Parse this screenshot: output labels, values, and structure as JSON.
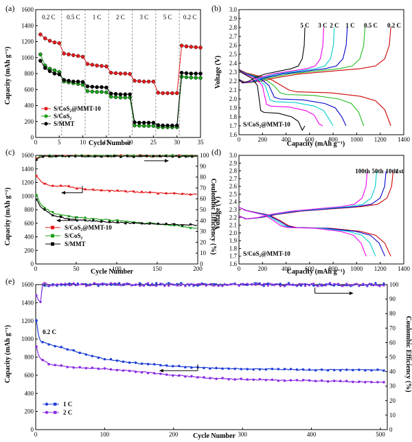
{
  "figure": {
    "panels": {
      "a": {
        "letter": "(a)",
        "xlabel": "Cycle Number",
        "ylabel": "Capacity (mAh g⁻¹)",
        "rates": [
          "0.2 C",
          "0.5 C",
          "1 C",
          "2 C",
          "3 C",
          "5 C",
          "0.2 C"
        ]
      },
      "b": {
        "letter": "(b)",
        "xlabel": "Capacity (mAh g⁻¹)",
        "ylabel": "Voltage (V)",
        "rate_labels": [
          "5 C",
          "3 C",
          "2 C",
          "1 C",
          "0.5 C",
          "0.2 C"
        ],
        "sample": "S/CoS₂@MMT-10"
      },
      "c": {
        "letter": "(c)",
        "xlabel": "Cycle Number",
        "ylabel": "Capacity (mAh g⁻¹)",
        "ylabel2": "Coulombic Efficiency (%)"
      },
      "d": {
        "letter": "(d)",
        "xlabel": "Capacity (mAh g⁻¹)",
        "ylabel": "Voltage (V)",
        "cycle_labels": [
          "100th",
          "50th",
          "10th",
          "1st"
        ],
        "sample": "S/CoS₂@MMT-10"
      },
      "e": {
        "letter": "(e)",
        "xlabel": "Cycle Number",
        "ylabel": "Capacity (mAh g⁻¹)",
        "ylabel2": "Coulombic Efficiency (%)",
        "annotation": "0.2 C"
      }
    }
  },
  "chart_data": [
    {
      "panel": "a",
      "type": "scatter",
      "xlim": [
        0,
        35
      ],
      "ylim": [
        0,
        1600
      ],
      "xticks": [
        0,
        5,
        10,
        15,
        20,
        25,
        30,
        35
      ],
      "yticks": [
        0,
        200,
        400,
        600,
        800,
        1000,
        1200,
        1400,
        1600
      ],
      "rate_boundaries": [
        5.5,
        10.5,
        15.5,
        20.5,
        25.5,
        30.5
      ],
      "x": [
        1,
        2,
        3,
        4,
        5,
        6,
        7,
        8,
        9,
        10,
        11,
        12,
        13,
        14,
        15,
        16,
        17,
        18,
        19,
        20,
        21,
        22,
        23,
        24,
        25,
        26,
        27,
        28,
        29,
        30,
        31,
        32,
        33,
        34,
        35
      ],
      "series": [
        {
          "name": "S/CoS₂@MMT-10",
          "color": "#e41a1c",
          "values": [
            1290,
            1240,
            1210,
            1190,
            1180,
            1050,
            1040,
            1030,
            1020,
            1010,
            920,
            910,
            900,
            895,
            890,
            810,
            805,
            800,
            800,
            795,
            710,
            705,
            700,
            700,
            700,
            560,
            555,
            555,
            555,
            555,
            1150,
            1140,
            1135,
            1130,
            1125
          ]
        },
        {
          "name": "S/CoS₂",
          "color": "#1a9e1a",
          "values": [
            1040,
            900,
            860,
            840,
            820,
            700,
            690,
            680,
            670,
            660,
            580,
            575,
            570,
            570,
            565,
            510,
            505,
            500,
            500,
            500,
            150,
            148,
            145,
            145,
            145,
            130,
            128,
            128,
            128,
            128,
            760,
            755,
            750,
            748,
            745
          ]
        },
        {
          "name": "S/MMT",
          "color": "#000000",
          "values": [
            960,
            870,
            830,
            800,
            790,
            720,
            710,
            700,
            700,
            695,
            640,
            635,
            630,
            630,
            625,
            550,
            545,
            540,
            540,
            540,
            190,
            185,
            185,
            185,
            185,
            155,
            150,
            150,
            150,
            150,
            810,
            805,
            800,
            800,
            800
          ]
        }
      ]
    },
    {
      "panel": "b",
      "type": "line",
      "xlim": [
        0,
        1400
      ],
      "ylim": [
        1.6,
        3.0
      ],
      "xticks": [
        0,
        200,
        400,
        600,
        800,
        1000,
        1200,
        1400
      ],
      "yticks": [
        1.6,
        1.7,
        1.8,
        1.9,
        2.0,
        2.1,
        2.2,
        2.3,
        2.4,
        2.5,
        2.6,
        2.7,
        2.8,
        2.9,
        3.0
      ],
      "series": [
        {
          "name": "0.2 C",
          "color": "#cc0000",
          "discharge_capacity": 1290,
          "charge_capacity": 1290,
          "plateau_low": 2.08
        },
        {
          "name": "0.5 C",
          "color": "#22bb22",
          "discharge_capacity": 1060,
          "charge_capacity": 1070,
          "plateau_low": 2.05
        },
        {
          "name": "1 C",
          "color": "#0000cc",
          "discharge_capacity": 910,
          "charge_capacity": 920,
          "plateau_low": 2.0
        },
        {
          "name": "2 C",
          "color": "#00cccc",
          "discharge_capacity": 800,
          "charge_capacity": 810,
          "plateau_low": 1.97
        },
        {
          "name": "3 C",
          "color": "#ee00ee",
          "discharge_capacity": 710,
          "charge_capacity": 720,
          "plateau_low": 1.92
        },
        {
          "name": "5 C",
          "color": "#000000",
          "discharge_capacity": 560,
          "charge_capacity": 560,
          "plateau_low": 1.85
        }
      ]
    },
    {
      "panel": "c",
      "type": "line",
      "xlim": [
        0,
        200
      ],
      "ylim": [
        0,
        1600
      ],
      "y2lim": [
        0,
        100
      ],
      "xticks": [
        0,
        50,
        100,
        150,
        200
      ],
      "yticks": [
        0,
        200,
        400,
        600,
        800,
        1000,
        1200,
        1400,
        1600
      ],
      "y2ticks": [
        0,
        10,
        20,
        30,
        40,
        50,
        60,
        70,
        80,
        90,
        100
      ],
      "series": [
        {
          "name": "S/CoS₂@MMT-10",
          "color": "#e41a1c",
          "x": [
            1,
            5,
            10,
            20,
            30,
            40,
            50,
            75,
            100,
            125,
            150,
            175,
            200
          ],
          "values": [
            1290,
            1240,
            1180,
            1150,
            1150,
            1140,
            1120,
            1090,
            1075,
            1060,
            1045,
            1035,
            1025
          ],
          "ce_x": [
            1,
            5,
            10,
            50,
            100,
            150,
            200
          ],
          "ce": [
            97,
            99,
            99.5,
            99.5,
            99.5,
            99.5,
            99.5
          ]
        },
        {
          "name": "S/CoS₂",
          "color": "#1a9e1a",
          "x": [
            1,
            5,
            10,
            20,
            30,
            40,
            50,
            75,
            100,
            125,
            150,
            175,
            200
          ],
          "values": [
            1020,
            900,
            830,
            760,
            720,
            700,
            690,
            660,
            640,
            610,
            590,
            560,
            520
          ],
          "ce_x": [
            1,
            5,
            10,
            50,
            100,
            150,
            200
          ],
          "ce": [
            96,
            99,
            99.5,
            99.5,
            99.5,
            99.5,
            99.5
          ]
        },
        {
          "name": "S/MMT",
          "color": "#000000",
          "x": [
            1,
            5,
            10,
            20,
            30,
            40,
            50,
            75,
            100,
            125,
            150,
            175,
            200
          ],
          "values": [
            950,
            860,
            800,
            730,
            690,
            665,
            650,
            630,
            610,
            600,
            590,
            580,
            570
          ],
          "ce_x": [
            1,
            5,
            10,
            50,
            100,
            150,
            200
          ],
          "ce": [
            96,
            98,
            99,
            99,
            99,
            99,
            99
          ]
        }
      ]
    },
    {
      "panel": "d",
      "type": "line",
      "xlim": [
        0,
        1400
      ],
      "ylim": [
        1.6,
        3.0
      ],
      "xticks": [
        0,
        200,
        400,
        600,
        800,
        1000,
        1200,
        1400
      ],
      "yticks": [
        1.6,
        1.7,
        1.8,
        1.9,
        2.0,
        2.1,
        2.2,
        2.3,
        2.4,
        2.5,
        2.6,
        2.7,
        2.8,
        2.9,
        3.0
      ],
      "series": [
        {
          "name": "1st",
          "color": "#cc0000",
          "discharge_capacity": 1290,
          "charge_capacity": 1310
        },
        {
          "name": "10th",
          "color": "#0000cc",
          "discharge_capacity": 1240,
          "charge_capacity": 1250
        },
        {
          "name": "50th",
          "color": "#00cccc",
          "discharge_capacity": 1160,
          "charge_capacity": 1170
        },
        {
          "name": "100th",
          "color": "#ee00ee",
          "discharge_capacity": 1080,
          "charge_capacity": 1090
        }
      ]
    },
    {
      "panel": "e",
      "type": "line",
      "xlim": [
        0,
        510
      ],
      "ylim": [
        0,
        1600
      ],
      "y2lim": [
        0,
        100
      ],
      "xticks": [
        0,
        100,
        200,
        300,
        400,
        500
      ],
      "yticks": [
        0,
        200,
        400,
        600,
        800,
        1000,
        1200,
        1400,
        1600
      ],
      "y2ticks": [
        0,
        10,
        20,
        30,
        40,
        50,
        60,
        70,
        80,
        90,
        100
      ],
      "series": [
        {
          "name": "1 C",
          "color": "#1f3fd8",
          "x": [
            1,
            3,
            5,
            10,
            20,
            50,
            100,
            150,
            200,
            250,
            300,
            350,
            400,
            450,
            500
          ],
          "values": [
            1200,
            1100,
            990,
            960,
            940,
            880,
            780,
            730,
            700,
            680,
            670,
            665,
            660,
            660,
            655
          ],
          "ce_value": 100
        },
        {
          "name": "2 C",
          "color": "#8a2be2",
          "x": [
            1,
            3,
            5,
            10,
            20,
            50,
            100,
            150,
            200,
            250,
            300,
            350,
            400,
            450,
            500
          ],
          "values": [
            920,
            860,
            790,
            770,
            720,
            690,
            670,
            640,
            600,
            570,
            555,
            545,
            540,
            530,
            520
          ],
          "ce_value": 100
        }
      ]
    }
  ]
}
